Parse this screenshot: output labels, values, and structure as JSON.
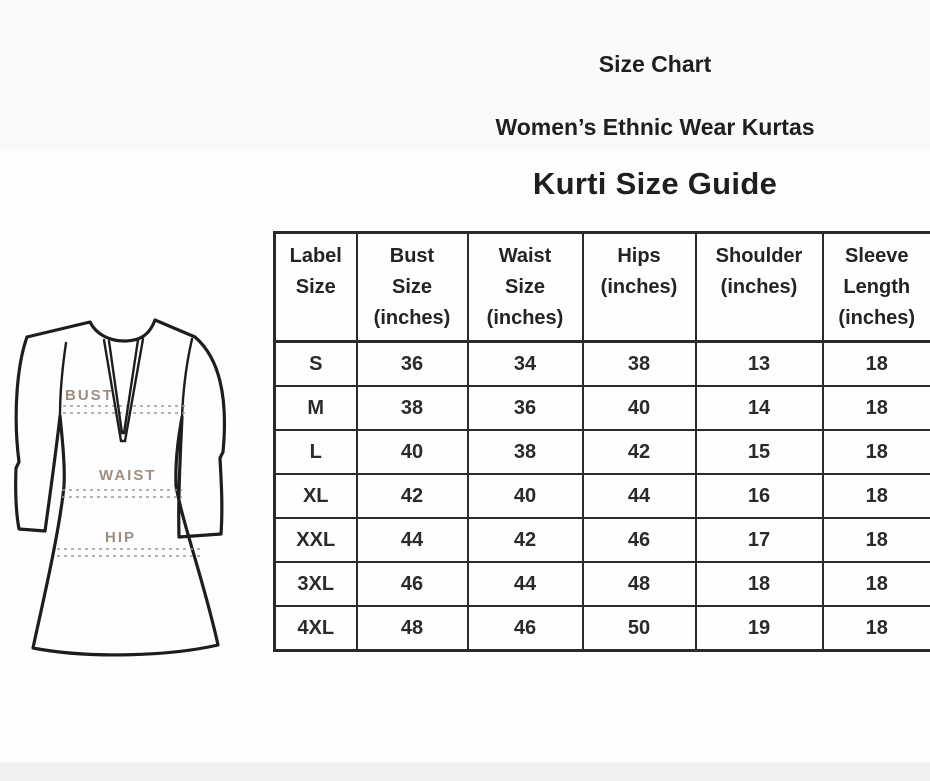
{
  "colors": {
    "background": "#fefefe",
    "footer_band": "#f0f0f0",
    "table_border": "#2b2b2b",
    "heading_text": "#1f1f1f",
    "table_text": "#2a2a2a",
    "figure_outline": "#1d1d1d",
    "figure_label": "#9d8e84"
  },
  "chart_data": {
    "type": "table",
    "title": "Size Chart",
    "subtitle": "Women’s Ethnic Wear Kurtas",
    "table_title": "Kurti Size Guide",
    "columns": [
      "Label\nSize",
      "Bust\nSize\n(inches)",
      "Waist\nSize\n(inches)",
      "Hips\n(inches)",
      "Shoulder\n(inches)",
      "Sleeve\nLength\n(inches)"
    ],
    "rows": [
      [
        "S",
        36,
        34,
        38,
        13,
        18
      ],
      [
        "M",
        38,
        36,
        40,
        14,
        18
      ],
      [
        "L",
        40,
        38,
        42,
        15,
        18
      ],
      [
        "XL",
        42,
        40,
        44,
        16,
        18
      ],
      [
        "XXL",
        44,
        42,
        46,
        17,
        18
      ],
      [
        "3XL",
        46,
        44,
        48,
        18,
        18
      ],
      [
        "4XL",
        48,
        46,
        50,
        19,
        18
      ]
    ],
    "figure_labels": [
      "BUST",
      "WAIST",
      "HIP"
    ]
  }
}
